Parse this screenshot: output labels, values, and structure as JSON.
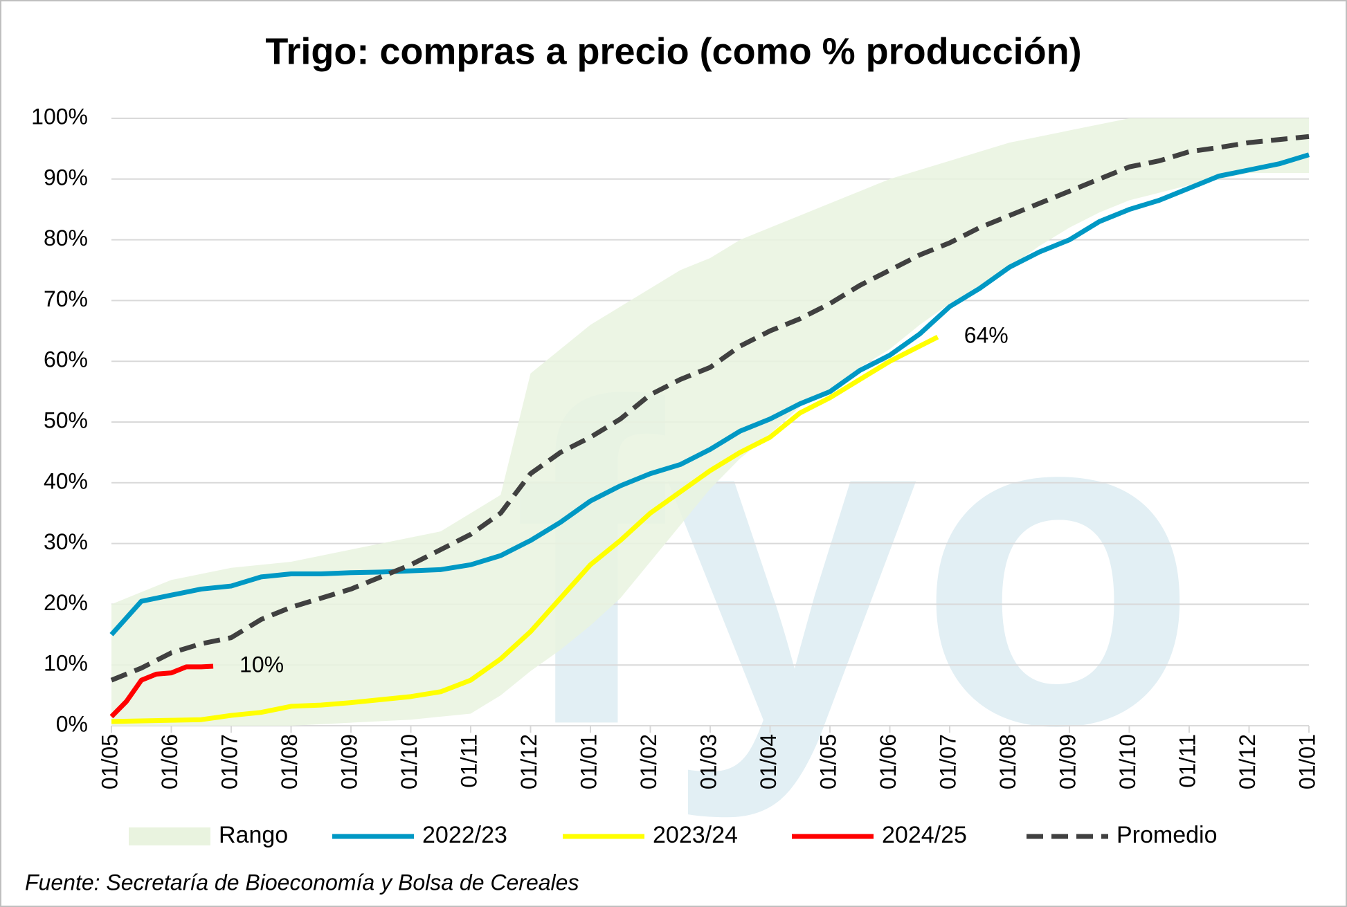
{
  "chart_data": {
    "type": "line",
    "title": "Trigo: compras a precio (como % producción)",
    "source": "Fuente: Secretaría de Bioeconomía y Bolsa de Cereales",
    "watermark": "fyo",
    "xlim": [
      0,
      20
    ],
    "xticks": [
      {
        "value": 0,
        "label": "01/05"
      },
      {
        "value": 1,
        "label": "01/06"
      },
      {
        "value": 2,
        "label": "01/07"
      },
      {
        "value": 3,
        "label": "01/08"
      },
      {
        "value": 4,
        "label": "01/09"
      },
      {
        "value": 5,
        "label": "01/10"
      },
      {
        "value": 6,
        "label": "01/11"
      },
      {
        "value": 7,
        "label": "01/12"
      },
      {
        "value": 8,
        "label": "01/01"
      },
      {
        "value": 9,
        "label": "01/02"
      },
      {
        "value": 10,
        "label": "01/03"
      },
      {
        "value": 11,
        "label": "01/04"
      },
      {
        "value": 12,
        "label": "01/05"
      },
      {
        "value": 13,
        "label": "01/06"
      },
      {
        "value": 14,
        "label": "01/07"
      },
      {
        "value": 15,
        "label": "01/08"
      },
      {
        "value": 16,
        "label": "01/09"
      },
      {
        "value": 17,
        "label": "01/10"
      },
      {
        "value": 18,
        "label": "01/11"
      },
      {
        "value": 19,
        "label": "01/12"
      },
      {
        "value": 20,
        "label": "01/01"
      }
    ],
    "ylim": [
      0,
      100
    ],
    "yticks": [
      {
        "value": 0,
        "label": "0%"
      },
      {
        "value": 10,
        "label": "10%"
      },
      {
        "value": 20,
        "label": "20%"
      },
      {
        "value": 30,
        "label": "30%"
      },
      {
        "value": 40,
        "label": "40%"
      },
      {
        "value": 50,
        "label": "50%"
      },
      {
        "value": 60,
        "label": "60%"
      },
      {
        "value": 70,
        "label": "70%"
      },
      {
        "value": 80,
        "label": "80%"
      },
      {
        "value": 90,
        "label": "90%"
      },
      {
        "value": 100,
        "label": "100%"
      }
    ],
    "grid": true,
    "legend": "bottom",
    "series": [
      {
        "name": "Rango",
        "type": "band",
        "color": "#e9f3df",
        "x": [
          0,
          1,
          2,
          3,
          4,
          5,
          5.5,
          6,
          6.5,
          7,
          7.5,
          8,
          8.5,
          9,
          9.5,
          10,
          10.5,
          11,
          11.5,
          12,
          12.5,
          13,
          13.5,
          14,
          14.5,
          15,
          15.5,
          16,
          16.5,
          17,
          18,
          19,
          20
        ],
        "lower": [
          0,
          0,
          0,
          0,
          0.5,
          1,
          1.5,
          2,
          5,
          9,
          12.5,
          16.5,
          21,
          27,
          33,
          39,
          44,
          48,
          52.5,
          55,
          59,
          62,
          66,
          69.5,
          72.5,
          75.5,
          79,
          82,
          84.5,
          86.5,
          89,
          91,
          91
        ],
        "upper": [
          20,
          24,
          26,
          27,
          29,
          31,
          32,
          35,
          38,
          58,
          62,
          66,
          69,
          72,
          75,
          77,
          80,
          82,
          84,
          86,
          88,
          90,
          91.5,
          93,
          94.5,
          96,
          97,
          98,
          99,
          100,
          100,
          100,
          100
        ]
      },
      {
        "name": "2022/23",
        "color": "#0098c4",
        "x": [
          0,
          0.5,
          1,
          1.5,
          2,
          2.5,
          3,
          3.5,
          4,
          4.5,
          5,
          5.5,
          6,
          6.5,
          7,
          7.5,
          8,
          8.5,
          9,
          9.5,
          10,
          10.5,
          11,
          11.5,
          12,
          12.5,
          13,
          13.5,
          14,
          14.5,
          15,
          15.5,
          16,
          16.5,
          17,
          17.5,
          18,
          18.5,
          19,
          19.5,
          20
        ],
        "values": [
          15,
          20.5,
          21.5,
          22.5,
          23,
          24.5,
          25,
          25,
          25.2,
          25.3,
          25.5,
          25.7,
          26.5,
          28,
          30.5,
          33.5,
          37,
          39.5,
          41.5,
          43,
          45.5,
          48.5,
          50.5,
          53,
          55,
          58.5,
          61,
          64.5,
          69,
          72,
          75.5,
          78,
          80,
          83,
          85,
          86.5,
          88.5,
          90.5,
          91.5,
          92.5,
          94
        ]
      },
      {
        "name": "2023/24",
        "color": "#ffff00",
        "x": [
          0,
          0.5,
          1,
          1.5,
          2,
          2.5,
          3,
          3.5,
          4,
          4.5,
          5,
          5.5,
          6,
          6.5,
          7,
          7.5,
          8,
          8.5,
          9,
          9.5,
          10,
          10.5,
          11,
          11.5,
          12,
          12.5,
          13,
          13.5,
          13.8
        ],
        "values": [
          0.7,
          0.8,
          0.9,
          1,
          1.7,
          2.2,
          3.2,
          3.4,
          3.8,
          4.3,
          4.8,
          5.6,
          7.5,
          11,
          15.5,
          21,
          26.5,
          30.5,
          35,
          38.5,
          42,
          45,
          47.5,
          51.5,
          54,
          57,
          60,
          62.5,
          64
        ],
        "value_labels": [
          null,
          null,
          null,
          null,
          null,
          null,
          null,
          null,
          null,
          null,
          null,
          null,
          null,
          null,
          null,
          null,
          null,
          null,
          null,
          null,
          null,
          null,
          null,
          null,
          null,
          null,
          null,
          null,
          "64%"
        ]
      },
      {
        "name": "2024/25",
        "color": "#ff0000",
        "x": [
          0,
          0.25,
          0.5,
          0.75,
          1,
          1.25,
          1.5,
          1.7
        ],
        "values": [
          1.5,
          4,
          7.5,
          8.5,
          8.7,
          9.7,
          9.7,
          9.8
        ],
        "value_labels": [
          null,
          null,
          null,
          null,
          null,
          null,
          null,
          "10%"
        ]
      },
      {
        "name": "Promedio",
        "color": "#404040",
        "dashed": true,
        "x": [
          0,
          0.5,
          1,
          1.5,
          2,
          2.5,
          3,
          3.5,
          4,
          4.5,
          5,
          5.5,
          6,
          6.5,
          7,
          7.5,
          8,
          8.5,
          9,
          9.5,
          10,
          10.5,
          11,
          11.5,
          12,
          12.5,
          13,
          13.5,
          14,
          14.5,
          15,
          15.5,
          16,
          16.5,
          17,
          17.5,
          18,
          18.5,
          19,
          19.5,
          20
        ],
        "values": [
          7.5,
          9.5,
          12,
          13.5,
          14.5,
          17.5,
          19.5,
          21,
          22.5,
          24.5,
          26.5,
          29,
          31.5,
          35,
          41.5,
          45,
          47.5,
          50.5,
          54.5,
          57,
          59,
          62.5,
          65,
          67,
          69.5,
          72.5,
          75,
          77.5,
          79.5,
          82,
          84,
          86,
          88,
          90,
          92,
          93,
          94.5,
          95.2,
          96,
          96.5,
          97
        ]
      }
    ]
  }
}
